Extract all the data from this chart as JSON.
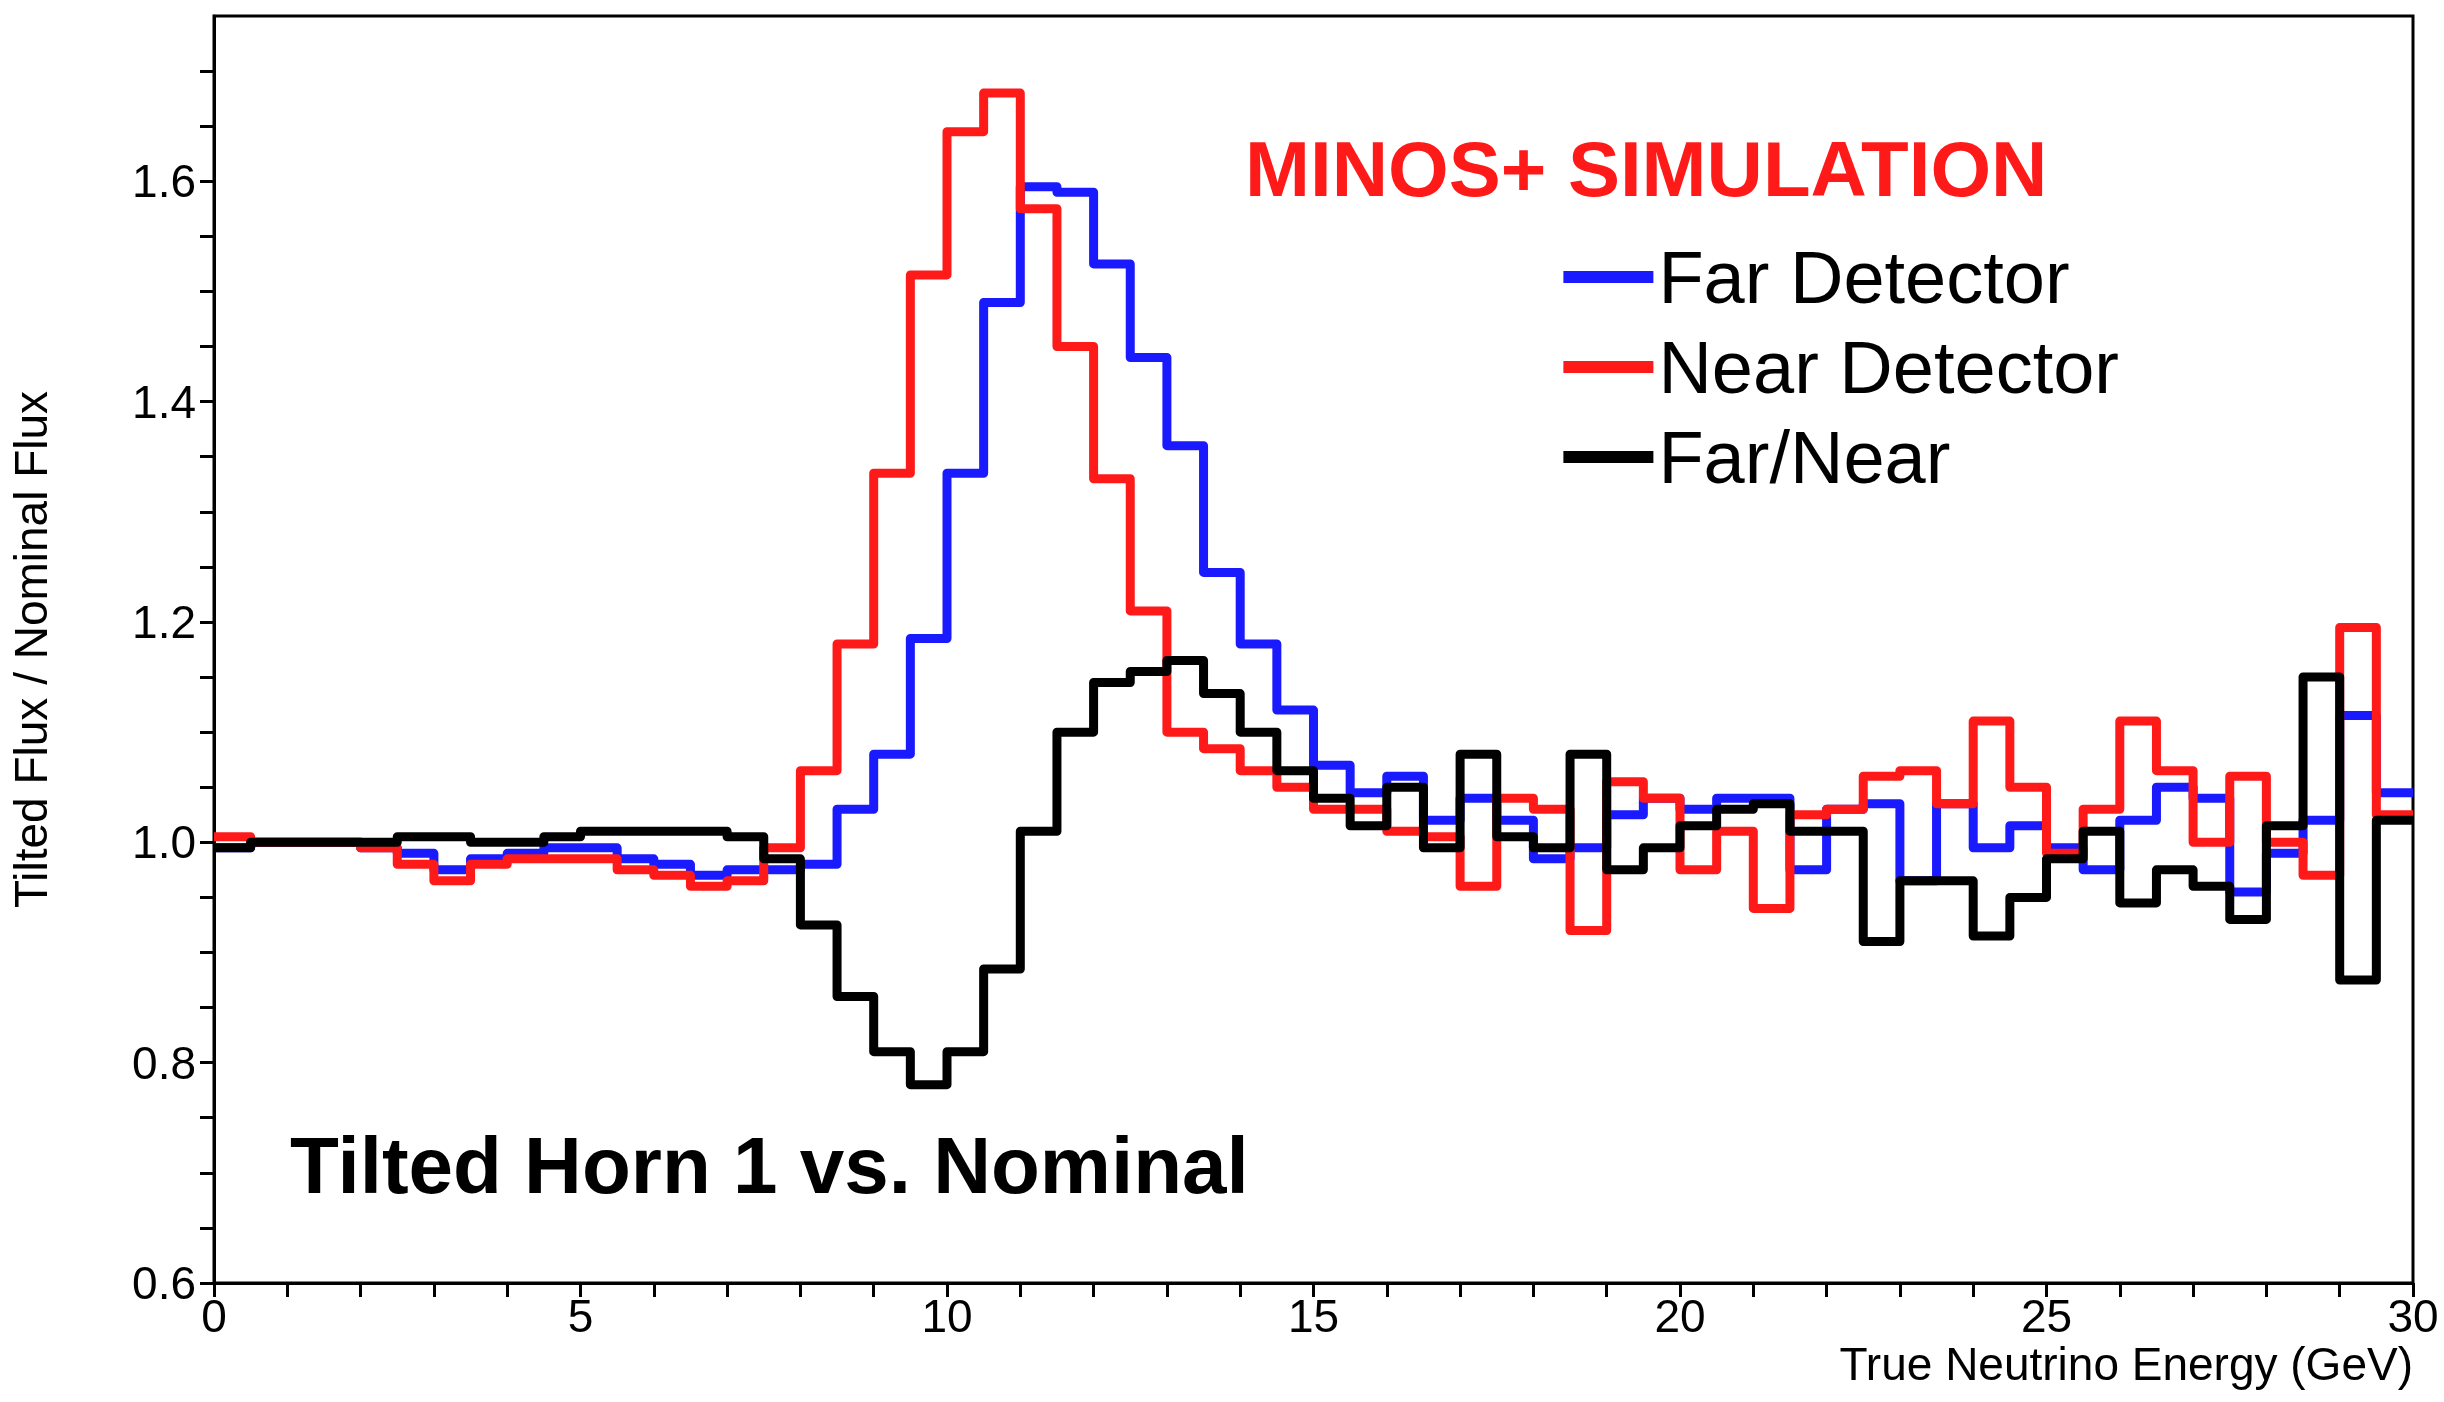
{
  "chart_data": {
    "type": "histogram",
    "xlabel": "True Neutrino Energy (GeV)",
    "ylabel": "Tilted Flux / Nominal Flux",
    "annotations": [
      "MINOS+ SIMULATION",
      "Tilted Horn 1 vs. Nominal"
    ],
    "bins": [
      0,
      0.5,
      1,
      1.5,
      2,
      2.5,
      3,
      3.5,
      4,
      4.5,
      5,
      5.5,
      6,
      6.5,
      7,
      7.5,
      8,
      8.5,
      9,
      9.5,
      10,
      10.5,
      11,
      11.5,
      12,
      12.5,
      13,
      13.5,
      14,
      14.5,
      15,
      15.5,
      16,
      16.5,
      17,
      17.5,
      18,
      18.5,
      19,
      19.5,
      20,
      20.5,
      21,
      21.5,
      22,
      22.5,
      23,
      23.5,
      24,
      24.5,
      25,
      25.5,
      26,
      26.5,
      27,
      27.5,
      28,
      28.5,
      29,
      29.5,
      30
    ],
    "series": [
      {
        "name": "Far Detector",
        "color": "#1a1aff",
        "values": [
          0.995,
          1.0,
          1.0,
          1.0,
          0.995,
          0.99,
          0.975,
          0.985,
          0.99,
          0.995,
          0.995,
          0.985,
          0.98,
          0.97,
          0.975,
          0.975,
          0.98,
          1.03,
          1.08,
          1.185,
          1.335,
          1.49,
          1.595,
          1.59,
          1.525,
          1.44,
          1.36,
          1.245,
          1.18,
          1.12,
          1.07,
          1.045,
          1.06,
          1.02,
          1.04,
          1.02,
          0.985,
          0.995,
          1.025,
          1.04,
          1.03,
          1.04,
          1.04,
          0.975,
          1.03,
          1.035,
          0.965,
          1.035,
          0.995,
          1.015,
          0.995,
          0.975,
          1.02,
          1.05,
          1.04,
          0.955,
          0.99,
          1.02,
          1.115,
          1.045
        ]
      },
      {
        "name": "Near Detector",
        "color": "#ff1a1a",
        "values": [
          1.005,
          1.0,
          1.0,
          1.0,
          0.995,
          0.98,
          0.965,
          0.98,
          0.985,
          0.985,
          0.985,
          0.975,
          0.97,
          0.96,
          0.965,
          0.995,
          1.065,
          1.18,
          1.335,
          1.515,
          1.645,
          1.68,
          1.575,
          1.45,
          1.33,
          1.21,
          1.1,
          1.085,
          1.065,
          1.05,
          1.03,
          1.03,
          1.01,
          1.005,
          0.96,
          1.04,
          1.03,
          0.92,
          1.055,
          1.04,
          0.975,
          1.01,
          0.94,
          1.025,
          1.03,
          1.06,
          1.065,
          1.035,
          1.11,
          1.05,
          0.99,
          1.03,
          1.11,
          1.065,
          1.0,
          1.06,
          1.0,
          0.97,
          1.195,
          1.025
        ]
      },
      {
        "name": "Far/Near",
        "color": "#000000",
        "values": [
          0.995,
          1.0,
          1.0,
          1.0,
          1.0,
          1.005,
          1.005,
          1.0,
          1.0,
          1.005,
          1.01,
          1.01,
          1.01,
          1.01,
          1.005,
          0.985,
          0.925,
          0.86,
          0.81,
          0.78,
          0.81,
          0.885,
          1.01,
          1.1,
          1.145,
          1.155,
          1.165,
          1.135,
          1.1,
          1.065,
          1.04,
          1.015,
          1.05,
          0.995,
          1.08,
          1.005,
          0.995,
          1.08,
          0.975,
          0.995,
          1.015,
          1.03,
          1.035,
          1.01,
          1.01,
          0.91,
          0.965,
          0.965,
          0.915,
          0.95,
          0.985,
          1.01,
          0.945,
          0.975,
          0.96,
          0.93,
          1.015,
          1.15,
          0.875,
          1.02
        ]
      }
    ],
    "xlim": [
      0,
      30
    ],
    "xticks": [
      0,
      {
        "value": 1,
        "label": null
      },
      {
        "value": 2,
        "label": null
      },
      {
        "value": 3,
        "label": null
      },
      {
        "value": 4,
        "label": null
      },
      5,
      {
        "value": 6,
        "label": null
      },
      {
        "value": 7,
        "label": null
      },
      {
        "value": 8,
        "label": null
      },
      {
        "value": 9,
        "label": null
      },
      10,
      {
        "value": 11,
        "label": null
      },
      {
        "value": 12,
        "label": null
      },
      {
        "value": 13,
        "label": null
      },
      {
        "value": 14,
        "label": null
      },
      15,
      {
        "value": 16,
        "label": null
      },
      {
        "value": 17,
        "label": null
      },
      {
        "value": 18,
        "label": null
      },
      {
        "value": 19,
        "label": null
      },
      20,
      {
        "value": 21,
        "label": null
      },
      {
        "value": 22,
        "label": null
      },
      {
        "value": 23,
        "label": null
      },
      {
        "value": 24,
        "label": null
      },
      25,
      {
        "value": 26,
        "label": null
      },
      {
        "value": 27,
        "label": null
      },
      {
        "value": 28,
        "label": null
      },
      {
        "value": 29,
        "label": null
      },
      30
    ],
    "ylim": [
      0.6,
      1.75
    ],
    "yticks": [
      0.6,
      {
        "value": 0.65,
        "label": null
      },
      {
        "value": 0.7,
        "label": null
      },
      {
        "value": 0.75,
        "label": null
      },
      0.8,
      {
        "value": 0.85,
        "label": null
      },
      {
        "value": 0.9,
        "label": null
      },
      {
        "value": 0.95,
        "label": null
      },
      {
        "value": 1,
        "label": "1.0"
      },
      {
        "value": 1.05,
        "label": null
      },
      {
        "value": 1.1,
        "label": null
      },
      {
        "value": 1.15,
        "label": null
      },
      1.2,
      {
        "value": 1.25,
        "label": null
      },
      {
        "value": 1.3,
        "label": null
      },
      {
        "value": 1.35,
        "label": null
      },
      1.4,
      {
        "value": 1.45,
        "label": null
      },
      {
        "value": 1.5,
        "label": null
      },
      {
        "value": 1.55,
        "label": null
      },
      1.6,
      {
        "value": 1.65,
        "label": null
      },
      {
        "value": 1.7,
        "label": null
      }
    ],
    "grid": false,
    "legend": "top right"
  }
}
